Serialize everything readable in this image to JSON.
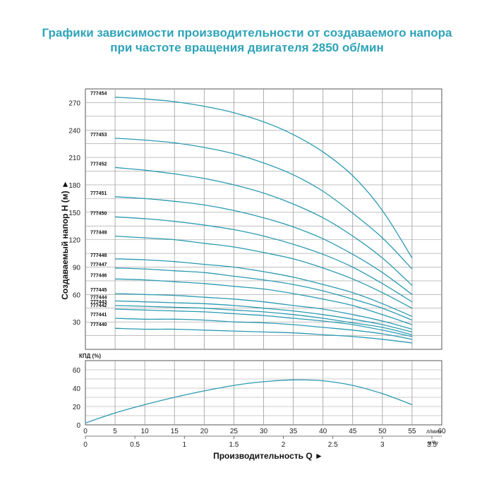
{
  "title": {
    "line1": "Графики зависимости производительности от создаваемого напора",
    "line2": "при частоте вращения двигателя 2850 об/мин"
  },
  "colors": {
    "title": "#2ea3b8",
    "curve": "#2a9ab1",
    "grid": "#9a9a9a"
  },
  "chart_data": [
    {
      "type": "line",
      "ylabel": "Создаваемый напор Н (м)",
      "ylim": [
        0,
        285
      ],
      "xlim": [
        0,
        60
      ],
      "yticks": [
        30,
        60,
        90,
        120,
        150,
        180,
        210,
        240,
        270
      ],
      "grid": true,
      "series": [
        {
          "name": "777454",
          "x": [
            5,
            10,
            15,
            20,
            25,
            30,
            35,
            40,
            45,
            50,
            55
          ],
          "values": [
            276,
            274,
            271,
            266,
            259,
            249,
            235,
            216,
            190,
            152,
            100
          ]
        },
        {
          "name": "777453",
          "x": [
            5,
            10,
            15,
            20,
            25,
            30,
            35,
            40,
            45,
            50,
            55
          ],
          "values": [
            231,
            229,
            226,
            221,
            214,
            204,
            191,
            173,
            149,
            122,
            88
          ]
        },
        {
          "name": "777452",
          "x": [
            5,
            10,
            15,
            20,
            25,
            30,
            35,
            40,
            45,
            50,
            55
          ],
          "values": [
            199,
            196,
            192,
            187,
            180,
            171,
            159,
            144,
            124,
            100,
            70
          ]
        },
        {
          "name": "777451",
          "x": [
            5,
            10,
            15,
            20,
            25,
            30,
            35,
            40,
            45,
            50,
            55
          ],
          "values": [
            167,
            165,
            162,
            158,
            152,
            144,
            134,
            121,
            104,
            84,
            60
          ]
        },
        {
          "name": "777450",
          "x": [
            5,
            10,
            15,
            20,
            25,
            30,
            35,
            40,
            45,
            50,
            55
          ],
          "values": [
            145,
            143,
            140,
            136,
            131,
            124,
            115,
            104,
            90,
            72,
            52
          ]
        },
        {
          "name": "777449",
          "x": [
            5,
            10,
            15,
            20,
            25,
            30,
            35,
            40,
            45,
            50,
            55
          ],
          "values": [
            124,
            122,
            120,
            116,
            112,
            106,
            99,
            89,
            77,
            62,
            45
          ]
        },
        {
          "name": "777448",
          "x": [
            5,
            10,
            15,
            20,
            25,
            30,
            35,
            40,
            45,
            50,
            55
          ],
          "values": [
            99,
            98,
            96,
            93,
            90,
            85,
            79,
            71,
            62,
            50,
            36
          ]
        },
        {
          "name": "777447",
          "x": [
            5,
            10,
            15,
            20,
            25,
            30,
            35,
            40,
            45,
            50,
            55
          ],
          "values": [
            89,
            88,
            86,
            84,
            80,
            76,
            71,
            64,
            55,
            45,
            32
          ]
        },
        {
          "name": "777446",
          "x": [
            5,
            10,
            15,
            20,
            25,
            30,
            35,
            40,
            45,
            50,
            55
          ],
          "values": [
            77,
            76,
            74,
            72,
            69,
            66,
            61,
            55,
            48,
            38,
            27
          ]
        },
        {
          "name": "777445",
          "x": [
            5,
            10,
            15,
            20,
            25,
            30,
            35,
            40,
            45,
            50,
            55
          ],
          "values": [
            61,
            60,
            59,
            57,
            55,
            52,
            48,
            44,
            38,
            31,
            22
          ]
        },
        {
          "name": "777444",
          "x": [
            5,
            10,
            15,
            20,
            25,
            30,
            35,
            40,
            45,
            50,
            55
          ],
          "values": [
            53,
            52,
            51,
            50,
            48,
            45,
            42,
            38,
            33,
            27,
            19
          ]
        },
        {
          "name": "777443",
          "x": [
            5,
            10,
            15,
            20,
            25,
            30,
            35,
            40,
            45,
            50,
            55
          ],
          "values": [
            48,
            47,
            46,
            45,
            43,
            41,
            38,
            34,
            29,
            24,
            16
          ]
        },
        {
          "name": "777442",
          "x": [
            5,
            10,
            15,
            20,
            25,
            30,
            35,
            40,
            45,
            50,
            55
          ],
          "values": [
            44,
            43,
            42,
            41,
            39,
            37,
            34,
            31,
            27,
            21,
            14
          ]
        },
        {
          "name": "777441",
          "x": [
            5,
            10,
            15,
            20,
            25,
            30,
            35,
            40,
            45,
            50,
            55
          ],
          "values": [
            34,
            33,
            33,
            32,
            30,
            29,
            27,
            24,
            21,
            17,
            11
          ]
        },
        {
          "name": "777440",
          "x": [
            5,
            10,
            15,
            20,
            25,
            30,
            35,
            40,
            45,
            50,
            55
          ],
          "values": [
            23,
            22,
            22,
            21,
            20,
            19,
            18,
            16,
            14,
            11,
            7
          ]
        }
      ]
    },
    {
      "type": "line",
      "ylabel": "КПД (%)",
      "ylim": [
        0,
        70
      ],
      "xlim": [
        0,
        60
      ],
      "yticks": [
        0,
        20,
        40,
        60
      ],
      "grid": true,
      "series": [
        {
          "name": "",
          "x": [
            0,
            5,
            10,
            15,
            20,
            25,
            30,
            35,
            40,
            45,
            50,
            55
          ],
          "values": [
            2,
            13,
            22,
            30,
            37,
            43,
            47,
            49,
            48,
            43,
            34,
            22
          ]
        }
      ]
    }
  ],
  "x_axis": {
    "lmin_ticks": [
      "0",
      "5",
      "10",
      "15",
      "20",
      "25",
      "30",
      "35",
      "40",
      "45",
      "50",
      "55",
      "60"
    ],
    "lmin_unit": "л/мин",
    "m3h_ticks": [
      "0",
      "0.5",
      "1",
      "1.5",
      "2",
      "2.5",
      "3",
      "3.5"
    ],
    "m3h_unit": "м³/ч",
    "title": "Производительность Q ►"
  }
}
